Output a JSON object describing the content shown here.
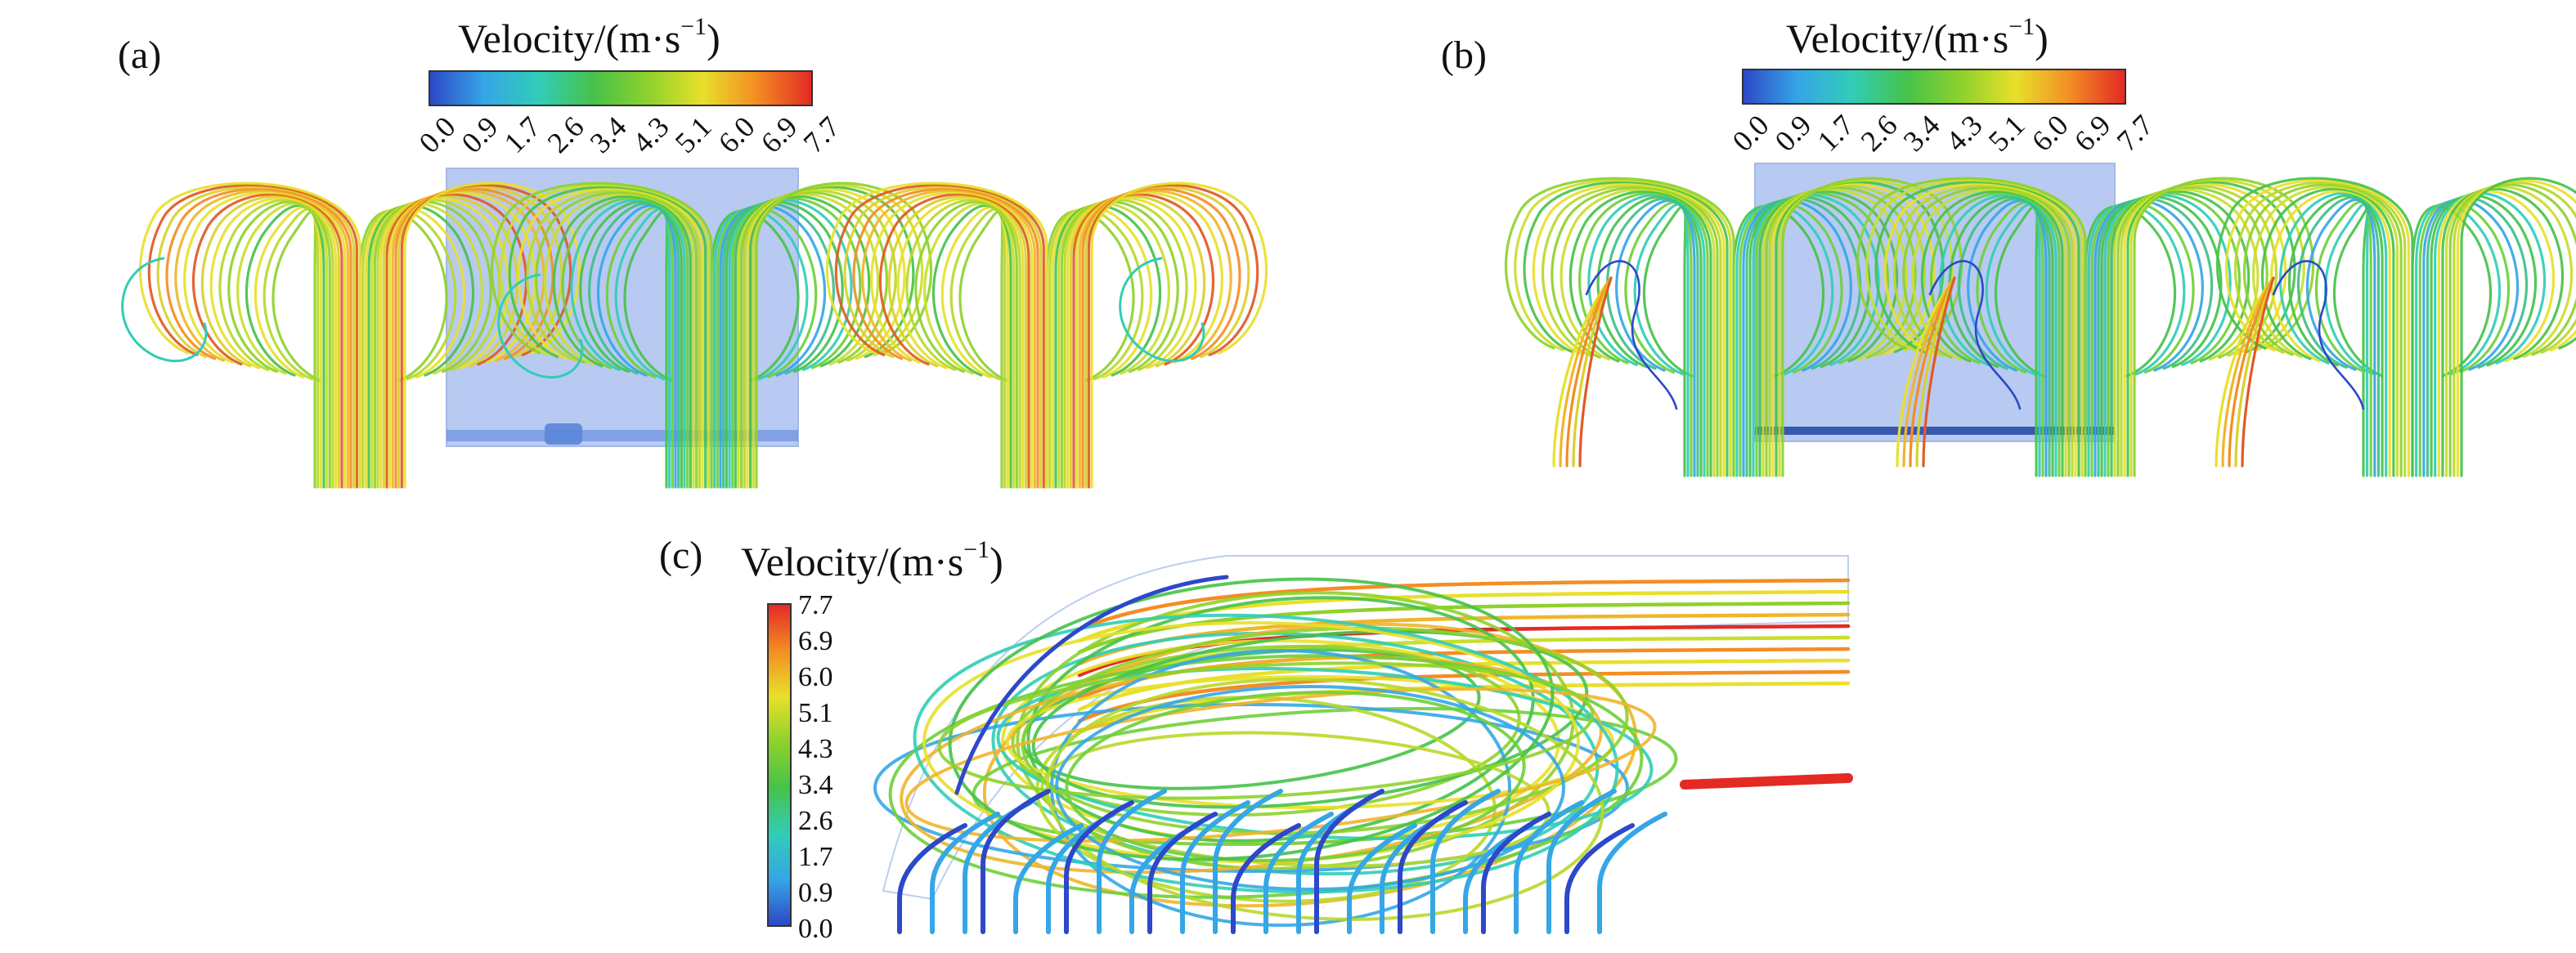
{
  "panels": {
    "a": {
      "label": "(a)"
    },
    "b": {
      "label": "(b)"
    },
    "c": {
      "label": "(c)"
    }
  },
  "colorbar": {
    "title_main": "Velocity/(m·s",
    "title_sup": "−1",
    "title_close": ")",
    "ticks": [
      "0.0",
      "0.9",
      "1.7",
      "2.6",
      "3.4",
      "4.3",
      "5.1",
      "6.0",
      "6.9",
      "7.7"
    ],
    "ticks_desc": [
      "7.7",
      "6.9",
      "6.0",
      "5.1",
      "4.3",
      "3.4",
      "2.6",
      "1.7",
      "0.9",
      "0.0"
    ],
    "colors": [
      "#2d48c8",
      "#35a6e6",
      "#31cdb7",
      "#46c24a",
      "#8ed12c",
      "#e8e02a",
      "#f38d24",
      "#e32a24"
    ]
  }
}
